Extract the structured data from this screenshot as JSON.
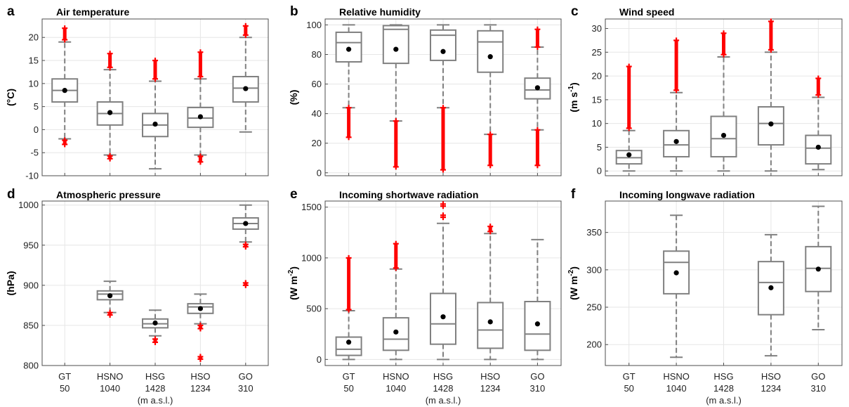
{
  "figure": {
    "categories": [
      "GT",
      "HSNO",
      "HSG",
      "HSO",
      "GO"
    ],
    "elevations": [
      "50",
      "1040",
      "1428",
      "1234",
      "310"
    ],
    "unit_note": "(m a.s.l.)",
    "box_color": "#808080",
    "outlier_color": "#ff0000",
    "mean_color": "#000000"
  },
  "chart_data": [
    {
      "letter": "a",
      "type": "box",
      "title": "Air temperature",
      "ylabel": "(°C)",
      "ylabel_sup": "",
      "ylabel_tail": "",
      "ylim": [
        -10,
        24
      ],
      "yticks": [
        -10,
        -5,
        0,
        5,
        10,
        15,
        20
      ],
      "categories": [
        "GT",
        "HSNO",
        "HSG",
        "HSO",
        "GO"
      ],
      "boxes": [
        {
          "name": "GT",
          "whislo": -2,
          "q1": 6,
          "med": 8.5,
          "q3": 11,
          "whishi": 19,
          "mean": 8.5,
          "outliers": [
            [
              19.5,
              22
            ],
            [
              -3.2,
              -2.3
            ]
          ]
        },
        {
          "name": "HSNO",
          "whislo": -5.5,
          "q1": 1,
          "med": 3.5,
          "q3": 6,
          "whishi": 13,
          "mean": 3.7,
          "outliers": [
            [
              13.5,
              16.5
            ],
            [
              -6.3,
              -5.7
            ]
          ]
        },
        {
          "name": "HSG",
          "whislo": -8.5,
          "q1": -1.5,
          "med": 1,
          "q3": 3.5,
          "whishi": 10.5,
          "mean": 1.2,
          "outliers": [
            [
              11,
              15
            ]
          ]
        },
        {
          "name": "HSO",
          "whislo": -5.5,
          "q1": 0.5,
          "med": 2.5,
          "q3": 4.8,
          "whishi": 11,
          "mean": 2.8,
          "outliers": [
            [
              11.5,
              16.8
            ],
            [
              -7,
              -5.8
            ]
          ]
        },
        {
          "name": "GO",
          "whislo": -0.5,
          "q1": 6,
          "med": 9,
          "q3": 11.5,
          "whishi": 20,
          "mean": 8.9,
          "outliers": [
            [
              20.5,
              22.5
            ]
          ]
        }
      ]
    },
    {
      "letter": "b",
      "type": "box",
      "title": "Relative humidity",
      "ylabel": "(%)",
      "ylabel_sup": "",
      "ylabel_tail": "",
      "ylim": [
        -2,
        104
      ],
      "yticks": [
        0,
        20,
        40,
        60,
        80,
        100
      ],
      "categories": [
        "GT",
        "HSNO",
        "HSG",
        "HSO",
        "GO"
      ],
      "boxes": [
        {
          "name": "GT",
          "whislo": 44,
          "q1": 75,
          "med": 88,
          "q3": 95,
          "whishi": 100,
          "mean": 83.5,
          "outliers": [
            [
              24,
              44
            ]
          ]
        },
        {
          "name": "HSNO",
          "whislo": 35,
          "q1": 74,
          "med": 97,
          "q3": 99.5,
          "whishi": 100,
          "mean": 83.5,
          "outliers": [
            [
              4,
              35
            ]
          ]
        },
        {
          "name": "HSG",
          "whislo": 44,
          "q1": 76,
          "med": 93,
          "q3": 96.5,
          "whishi": 100,
          "mean": 82,
          "outliers": [
            [
              2,
              44
            ]
          ]
        },
        {
          "name": "HSO",
          "whislo": 26,
          "q1": 68,
          "med": 88.5,
          "q3": 96,
          "whishi": 100,
          "mean": 78.5,
          "outliers": [
            [
              5,
              26
            ]
          ]
        },
        {
          "name": "GO",
          "whislo": 29,
          "q1": 50,
          "med": 56,
          "q3": 64,
          "whishi": 85,
          "mean": 57.5,
          "outliers": [
            [
              85,
              97
            ],
            [
              5,
              29
            ]
          ]
        }
      ]
    },
    {
      "letter": "c",
      "type": "box",
      "title": "Wind speed",
      "ylabel": "(m s",
      "ylabel_sup": "-1",
      "ylabel_tail": ")",
      "ylim": [
        -1,
        32
      ],
      "yticks": [
        0,
        5,
        10,
        15,
        20,
        25,
        30
      ],
      "categories": [
        "GT",
        "HSNO",
        "HSG",
        "HSO",
        "GO"
      ],
      "boxes": [
        {
          "name": "GT",
          "whislo": 0,
          "q1": 1.5,
          "med": 2.8,
          "q3": 4.3,
          "whishi": 8.5,
          "mean": 3.4,
          "outliers": [
            [
              9,
              22
            ]
          ]
        },
        {
          "name": "HSNO",
          "whislo": 0,
          "q1": 3,
          "med": 5.5,
          "q3": 8.5,
          "whishi": 16.5,
          "mean": 6.2,
          "outliers": [
            [
              17,
              27.5
            ]
          ]
        },
        {
          "name": "HSG",
          "whislo": 0,
          "q1": 3,
          "med": 6.8,
          "q3": 11.5,
          "whishi": 24,
          "mean": 7.5,
          "outliers": [
            [
              24.5,
              29
            ]
          ]
        },
        {
          "name": "HSO",
          "whislo": 0,
          "q1": 5.5,
          "med": 10,
          "q3": 13.5,
          "whishi": 25,
          "mean": 9.9,
          "outliers": [
            [
              25.5,
              31.5
            ]
          ]
        },
        {
          "name": "GO",
          "whislo": 0.3,
          "q1": 1.5,
          "med": 4.8,
          "q3": 7.5,
          "whishi": 15.5,
          "mean": 5,
          "outliers": [
            [
              16,
              19.5
            ]
          ]
        }
      ]
    },
    {
      "letter": "d",
      "type": "box",
      "title": "Atmospheric pressure",
      "ylabel": "(hPa)",
      "ylabel_sup": "",
      "ylabel_tail": "",
      "ylim": [
        800,
        1005
      ],
      "yticks": [
        800,
        850,
        900,
        950,
        1000
      ],
      "categories": [
        "GT",
        "HSNO",
        "HSG",
        "HSO",
        "GO"
      ],
      "boxes": [
        {
          "name": "HSNO",
          "whislo": 866,
          "q1": 882,
          "med": 889,
          "q3": 893,
          "whishi": 905,
          "mean": 887,
          "outliers": [
            [
              863,
              866
            ]
          ]
        },
        {
          "name": "HSG",
          "whislo": 837,
          "q1": 847,
          "med": 852,
          "q3": 858,
          "whishi": 869,
          "mean": 853,
          "outliers": [
            [
              829,
              833
            ]
          ]
        },
        {
          "name": "HSO",
          "whislo": 852,
          "q1": 865,
          "med": 873,
          "q3": 877,
          "whishi": 889,
          "mean": 871,
          "outliers": [
            [
              846,
              850
            ],
            [
              808,
              811
            ]
          ]
        },
        {
          "name": "GO",
          "whislo": 954,
          "q1": 970,
          "med": 977,
          "q3": 984,
          "whishi": 1000,
          "mean": 977,
          "outliers": [
            [
              948,
              951
            ],
            [
              900,
              903
            ]
          ]
        }
      ]
    },
    {
      "letter": "e",
      "type": "box",
      "title": "Incoming shortwave radiation",
      "ylabel": "(W m",
      "ylabel_sup": "-2",
      "ylabel_tail": ")",
      "ylim": [
        -60,
        1560
      ],
      "yticks": [
        0,
        500,
        1000,
        1500
      ],
      "categories": [
        "GT",
        "HSNO",
        "HSG",
        "HSO",
        "GO"
      ],
      "boxes": [
        {
          "name": "GT",
          "whislo": 0,
          "q1": 40,
          "med": 100,
          "q3": 220,
          "whishi": 480,
          "mean": 170,
          "outliers": [
            [
              490,
              1000
            ]
          ]
        },
        {
          "name": "HSNO",
          "whislo": 0,
          "q1": 90,
          "med": 200,
          "q3": 410,
          "whishi": 890,
          "mean": 270,
          "outliers": [
            [
              900,
              1140
            ]
          ]
        },
        {
          "name": "HSG",
          "whislo": 0,
          "q1": 150,
          "med": 350,
          "q3": 650,
          "whishi": 1340,
          "mean": 420,
          "outliers": [
            [
              1400,
              1420
            ],
            [
              1510,
              1530
            ]
          ]
        },
        {
          "name": "HSO",
          "whislo": 0,
          "q1": 110,
          "med": 290,
          "q3": 560,
          "whishi": 1240,
          "mean": 370,
          "outliers": [
            [
              1260,
              1310
            ]
          ]
        },
        {
          "name": "GO",
          "whislo": 0,
          "q1": 90,
          "med": 250,
          "q3": 570,
          "whishi": 1180,
          "mean": 350,
          "outliers": []
        }
      ]
    },
    {
      "letter": "f",
      "type": "box",
      "title": "Incoming longwave radiation",
      "ylabel": "(W m",
      "ylabel_sup": "-2",
      "ylabel_tail": ")",
      "ylim": [
        172,
        392
      ],
      "yticks": [
        200,
        250,
        300,
        350
      ],
      "categories": [
        "GT",
        "HSNO",
        "HSG",
        "HSO",
        "GO"
      ],
      "boxes": [
        {
          "name": "HSNO",
          "whislo": 183,
          "q1": 268,
          "med": 310,
          "q3": 325,
          "whishi": 373,
          "mean": 296,
          "outliers": []
        },
        {
          "name": "HSO",
          "whislo": 185,
          "q1": 240,
          "med": 283,
          "q3": 311,
          "whishi": 347,
          "mean": 276,
          "outliers": []
        },
        {
          "name": "GO",
          "whislo": 220,
          "q1": 271,
          "med": 302,
          "q3": 331,
          "whishi": 385,
          "mean": 301,
          "outliers": []
        }
      ]
    }
  ]
}
